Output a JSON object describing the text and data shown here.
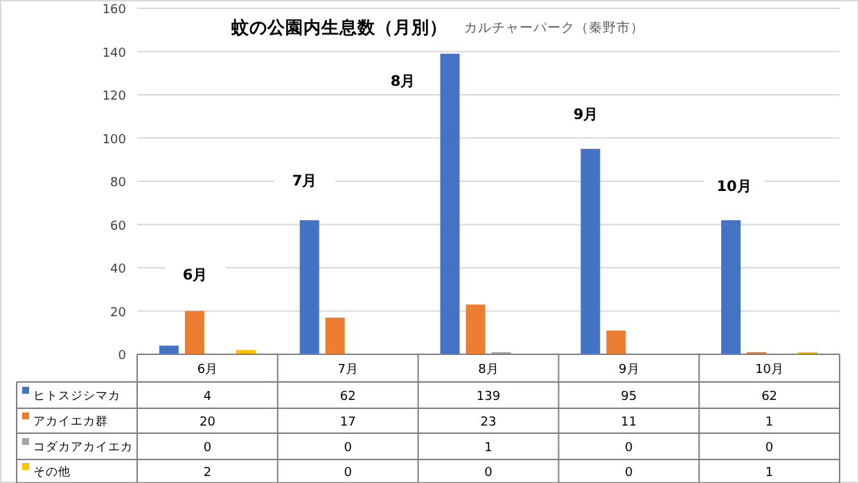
{
  "chart_data": {
    "type": "bar",
    "title": "蚊の公園内生息数（月別）",
    "subtitle": "カルチャーパーク（秦野市）",
    "categories": [
      "6月",
      "7月",
      "8月",
      "9月",
      "10月"
    ],
    "series": [
      {
        "name": "ヒトスジシマカ",
        "color": "#4472c4",
        "values": [
          4,
          62,
          139,
          95,
          62
        ]
      },
      {
        "name": "アカイエカ群",
        "color": "#ed7d31",
        "values": [
          20,
          17,
          23,
          11,
          1
        ]
      },
      {
        "name": "コダカアカイエカ",
        "color": "#a5a5a5",
        "values": [
          0,
          0,
          1,
          0,
          0
        ]
      },
      {
        "name": "その他",
        "color": "#ffc000",
        "values": [
          2,
          0,
          0,
          0,
          1
        ]
      }
    ],
    "annotations": [
      "6月",
      "7月",
      "8月",
      "9月",
      "10月"
    ],
    "ylim": [
      0,
      160
    ],
    "yticks": [
      0,
      20,
      40,
      60,
      80,
      100,
      120,
      140,
      160
    ],
    "grid": "y",
    "legend": "bottom",
    "data_labels": true
  }
}
